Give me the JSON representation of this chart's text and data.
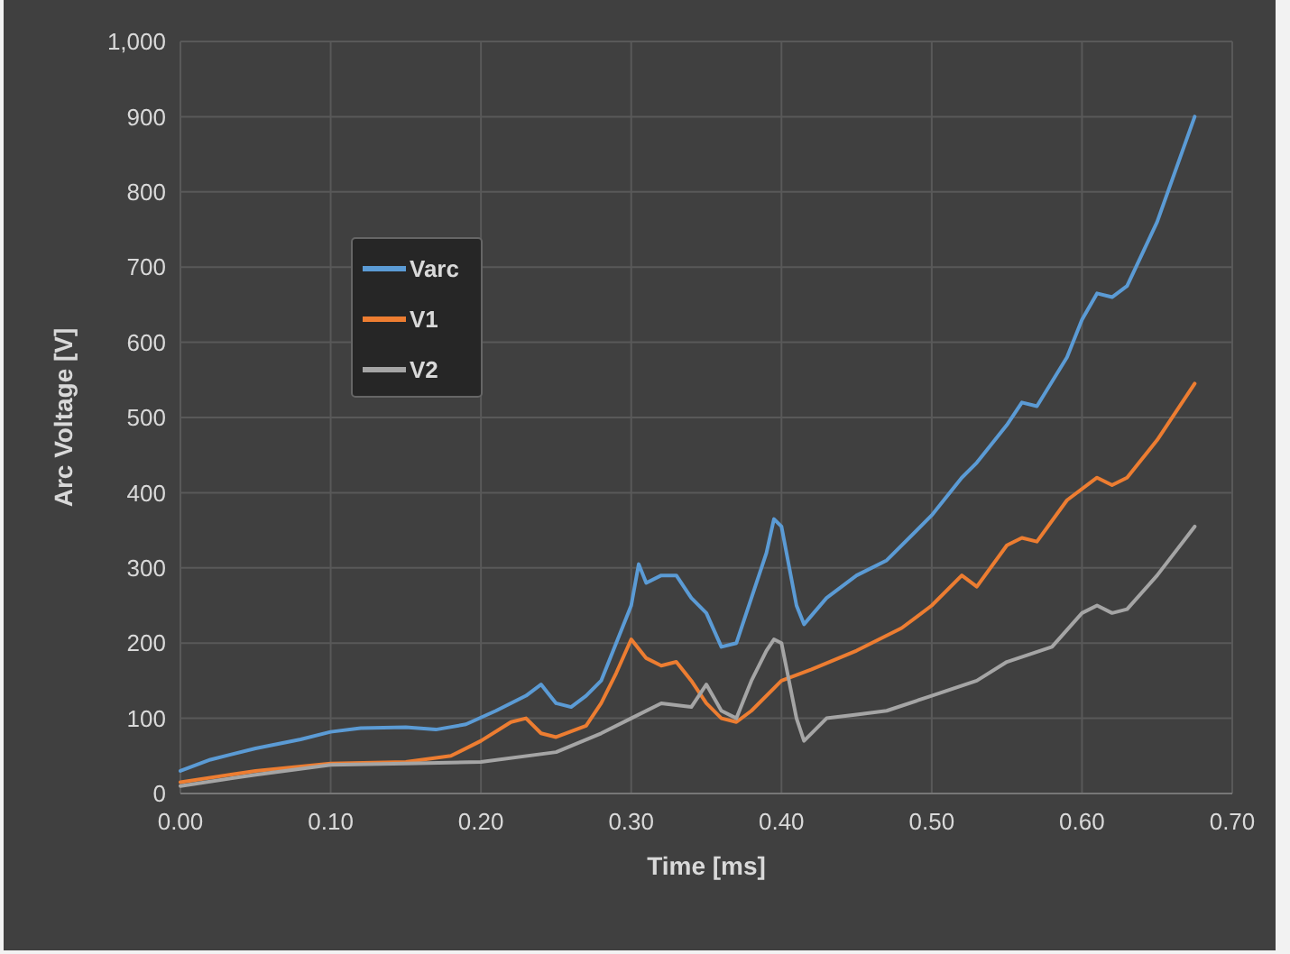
{
  "chart_data": {
    "type": "line",
    "xlabel": "Time [ms]",
    "ylabel": "Arc Voltage [V]",
    "xlim": [
      0,
      0.7
    ],
    "xticks": [
      {
        "value": 0,
        "label": "0.00"
      },
      {
        "value": 0.1,
        "label": "0.10"
      },
      {
        "value": 0.2,
        "label": "0.20"
      },
      {
        "value": 0.3,
        "label": "0.30"
      },
      {
        "value": 0.4,
        "label": "0.40"
      },
      {
        "value": 0.5,
        "label": "0.50"
      },
      {
        "value": 0.6,
        "label": "0.60"
      },
      {
        "value": 0.7,
        "label": "0.70"
      }
    ],
    "ylim": [
      0,
      1000
    ],
    "yticks": [
      0,
      100,
      200,
      300,
      400,
      500,
      600,
      700,
      800,
      900,
      {
        "value": 1000,
        "label": "1,000"
      }
    ],
    "grid": true,
    "legend": "top left",
    "marker": "none",
    "line_style": "solid",
    "series": [
      {
        "name": "Varc",
        "color": "#5b9bd5",
        "x": [
          0,
          0.02,
          0.05,
          0.08,
          0.1,
          0.12,
          0.15,
          0.17,
          0.19,
          0.21,
          0.23,
          0.24,
          0.25,
          0.26,
          0.27,
          0.28,
          0.29,
          0.3,
          0.305,
          0.31,
          0.32,
          0.33,
          0.34,
          0.35,
          0.36,
          0.37,
          0.38,
          0.39,
          0.395,
          0.4,
          0.41,
          0.415,
          0.43,
          0.45,
          0.47,
          0.5,
          0.52,
          0.53,
          0.55,
          0.56,
          0.57,
          0.59,
          0.6,
          0.61,
          0.62,
          0.63,
          0.65,
          0.675
        ],
        "values": [
          30,
          45,
          60,
          72,
          82,
          87,
          88,
          85,
          92,
          110,
          130,
          145,
          120,
          115,
          130,
          150,
          200,
          250,
          305,
          280,
          290,
          290,
          260,
          240,
          195,
          200,
          260,
          320,
          365,
          355,
          250,
          225,
          260,
          290,
          310,
          370,
          420,
          440,
          490,
          520,
          515,
          580,
          630,
          665,
          660,
          675,
          760,
          900
        ]
      },
      {
        "name": "V1",
        "color": "#ed7d31",
        "x": [
          0,
          0.05,
          0.1,
          0.15,
          0.18,
          0.2,
          0.22,
          0.23,
          0.24,
          0.25,
          0.27,
          0.28,
          0.29,
          0.3,
          0.31,
          0.32,
          0.33,
          0.34,
          0.35,
          0.36,
          0.37,
          0.38,
          0.4,
          0.42,
          0.45,
          0.48,
          0.5,
          0.52,
          0.53,
          0.55,
          0.56,
          0.57,
          0.59,
          0.61,
          0.62,
          0.63,
          0.65,
          0.675
        ],
        "values": [
          15,
          30,
          40,
          42,
          50,
          70,
          95,
          100,
          80,
          75,
          90,
          120,
          160,
          205,
          180,
          170,
          175,
          150,
          120,
          100,
          95,
          110,
          150,
          165,
          190,
          220,
          250,
          290,
          275,
          330,
          340,
          335,
          390,
          420,
          410,
          420,
          470,
          545
        ]
      },
      {
        "name": "V2",
        "color": "#a5a5a5",
        "x": [
          0,
          0.05,
          0.1,
          0.15,
          0.2,
          0.25,
          0.28,
          0.3,
          0.32,
          0.34,
          0.35,
          0.36,
          0.37,
          0.38,
          0.39,
          0.395,
          0.4,
          0.41,
          0.415,
          0.43,
          0.45,
          0.47,
          0.5,
          0.53,
          0.55,
          0.58,
          0.6,
          0.61,
          0.62,
          0.63,
          0.65,
          0.675
        ],
        "values": [
          10,
          25,
          38,
          40,
          42,
          55,
          80,
          100,
          120,
          115,
          145,
          110,
          100,
          150,
          190,
          205,
          200,
          100,
          70,
          100,
          105,
          110,
          130,
          150,
          175,
          195,
          240,
          250,
          240,
          245,
          290,
          355
        ]
      }
    ]
  }
}
